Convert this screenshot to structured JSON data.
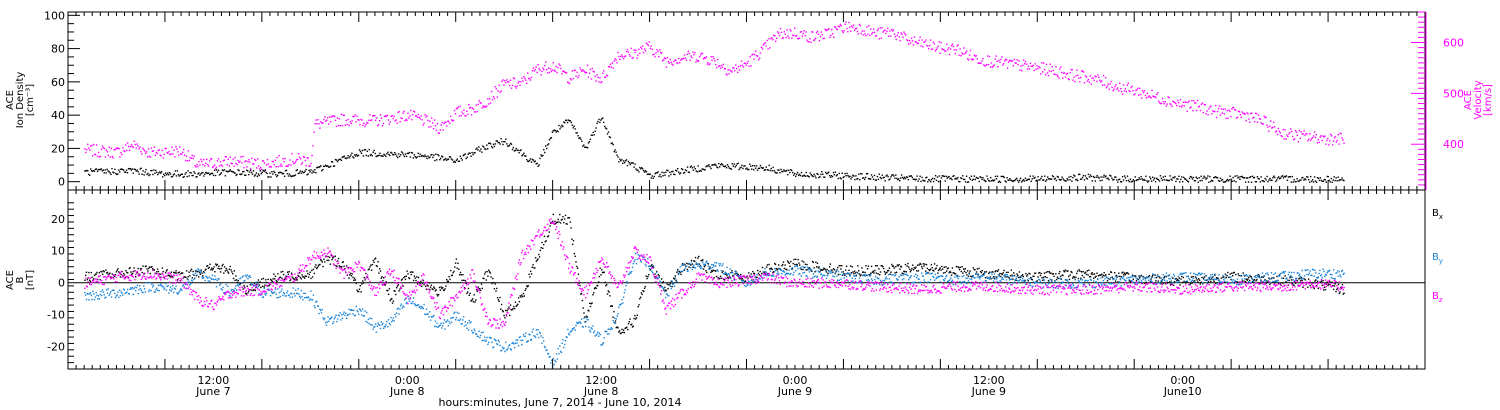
{
  "chart_data": [
    {
      "type": "scatter",
      "panel": "top",
      "left_ylabel": [
        "ACE",
        "Ion Density",
        "[cm⁻³]"
      ],
      "right_ylabel": [
        "ACE",
        "Velocity",
        "[km/s]"
      ],
      "ylim_left": [
        -5,
        102
      ],
      "ylim_right": [
        310,
        660
      ],
      "yticks_left": [
        "0",
        "20",
        "40",
        "60",
        "80",
        "100"
      ],
      "yticks_right": [
        "400",
        "500",
        "600"
      ],
      "colors": {
        "density": "#000000",
        "velocity": "#ff00ff"
      },
      "series": [
        {
          "axis": "left",
          "points": [
            [
              2,
              6
            ],
            [
              8,
              7
            ],
            [
              12,
              5
            ],
            [
              16,
              5
            ],
            [
              20,
              6
            ],
            [
              26,
              5
            ],
            [
              30,
              6
            ],
            [
              34,
              14
            ],
            [
              36,
              18
            ],
            [
              40,
              17
            ],
            [
              44,
              16
            ],
            [
              48,
              13
            ],
            [
              52,
              22
            ],
            [
              54,
              25
            ],
            [
              56,
              18
            ],
            [
              58,
              10
            ],
            [
              60,
              30
            ],
            [
              62,
              37
            ],
            [
              64,
              20
            ],
            [
              66,
              40
            ],
            [
              68,
              14
            ],
            [
              70,
              10
            ],
            [
              72,
              4
            ],
            [
              76,
              7
            ],
            [
              80,
              10
            ],
            [
              86,
              9
            ],
            [
              90,
              5
            ],
            [
              96,
              4
            ],
            [
              100,
              3
            ],
            [
              106,
              2
            ],
            [
              112,
              2
            ],
            [
              120,
              2
            ],
            [
              126,
              3
            ],
            [
              130,
              2
            ],
            [
              136,
              2
            ],
            [
              142,
              2
            ],
            [
              148,
              2
            ],
            [
              154,
              2
            ],
            [
              158,
              2
            ]
          ]
        },
        {
          "axis": "right",
          "points": [
            [
              2,
              390
            ],
            [
              6,
              385
            ],
            [
              8,
              400
            ],
            [
              10,
              385
            ],
            [
              14,
              388
            ],
            [
              16,
              360
            ],
            [
              20,
              368
            ],
            [
              24,
              362
            ],
            [
              28,
              372
            ],
            [
              30,
              368
            ],
            [
              30.5,
              440
            ],
            [
              34,
              450
            ],
            [
              38,
              447
            ],
            [
              42,
              458
            ],
            [
              44,
              448
            ],
            [
              46,
              433
            ],
            [
              48,
              463
            ],
            [
              50,
              470
            ],
            [
              52,
              490
            ],
            [
              54,
              520
            ],
            [
              56,
              520
            ],
            [
              58,
              548
            ],
            [
              60,
              556
            ],
            [
              62,
              532
            ],
            [
              64,
              547
            ],
            [
              66,
              530
            ],
            [
              68,
              576
            ],
            [
              70,
              580
            ],
            [
              72,
              593
            ],
            [
              74,
              565
            ],
            [
              76,
              572
            ],
            [
              78,
              575
            ],
            [
              80,
              565
            ],
            [
              82,
              545
            ],
            [
              84,
              560
            ],
            [
              86,
              587
            ],
            [
              88,
              618
            ],
            [
              90,
              620
            ],
            [
              92,
              612
            ],
            [
              94,
              618
            ],
            [
              96,
              632
            ],
            [
              98,
              630
            ],
            [
              100,
              618
            ],
            [
              102,
              622
            ],
            [
              104,
              605
            ],
            [
              106,
              598
            ],
            [
              108,
              590
            ],
            [
              110,
              588
            ],
            [
              112,
              572
            ],
            [
              114,
              565
            ],
            [
              116,
              560
            ],
            [
              118,
              556
            ],
            [
              120,
              551
            ],
            [
              122,
              546
            ],
            [
              124,
              538
            ],
            [
              126,
              533
            ],
            [
              128,
              525
            ],
            [
              130,
              513
            ],
            [
              132,
              507
            ],
            [
              134,
              497
            ],
            [
              136,
              488
            ],
            [
              138,
              479
            ],
            [
              140,
              475
            ],
            [
              142,
              466
            ],
            [
              144,
              462
            ],
            [
              146,
              458
            ],
            [
              148,
              445
            ],
            [
              150,
              425
            ],
            [
              152,
              418
            ],
            [
              154,
              415
            ],
            [
              156,
              412
            ],
            [
              158,
              412
            ]
          ]
        }
      ]
    },
    {
      "type": "scatter",
      "panel": "bottom",
      "left_ylabel": [
        "ACE",
        "B",
        "[nT]"
      ],
      "ylim": [
        -27,
        29
      ],
      "yticks": [
        "-20",
        "-10",
        "0",
        "10",
        "20"
      ],
      "series": [
        {
          "name": "B",
          "subscript": "x",
          "color": "#000000",
          "points": [
            [
              2,
              2
            ],
            [
              6,
              3
            ],
            [
              10,
              4
            ],
            [
              14,
              2
            ],
            [
              18,
              5
            ],
            [
              20,
              4
            ],
            [
              22,
              -2
            ],
            [
              26,
              2
            ],
            [
              30,
              3
            ],
            [
              32,
              8
            ],
            [
              34,
              6
            ],
            [
              36,
              -2
            ],
            [
              38,
              7
            ],
            [
              40,
              -5
            ],
            [
              42,
              3
            ],
            [
              44,
              0
            ],
            [
              46,
              -3
            ],
            [
              48,
              6
            ],
            [
              50,
              -6
            ],
            [
              52,
              4
            ],
            [
              54,
              -10
            ],
            [
              56,
              -5
            ],
            [
              58,
              8
            ],
            [
              60,
              20
            ],
            [
              62,
              20
            ],
            [
              64,
              -12
            ],
            [
              66,
              5
            ],
            [
              68,
              -15
            ],
            [
              70,
              -12
            ],
            [
              72,
              5
            ],
            [
              74,
              -2
            ],
            [
              76,
              5
            ],
            [
              78,
              7
            ],
            [
              80,
              3
            ],
            [
              84,
              2
            ],
            [
              86,
              4
            ],
            [
              90,
              6
            ],
            [
              96,
              4
            ],
            [
              100,
              4
            ],
            [
              106,
              5
            ],
            [
              110,
              4
            ],
            [
              114,
              3
            ],
            [
              120,
              2
            ],
            [
              126,
              3
            ],
            [
              130,
              2
            ],
            [
              136,
              1
            ],
            [
              140,
              1
            ],
            [
              144,
              2
            ],
            [
              150,
              1
            ],
            [
              154,
              0
            ],
            [
              158,
              -2
            ]
          ]
        },
        {
          "name": "B",
          "subscript": "y",
          "color": "#1a84d8",
          "points": [
            [
              2,
              -4
            ],
            [
              6,
              -3
            ],
            [
              8,
              -2
            ],
            [
              10,
              -1
            ],
            [
              14,
              -2
            ],
            [
              16,
              3
            ],
            [
              18,
              1
            ],
            [
              20,
              -3
            ],
            [
              22,
              2
            ],
            [
              24,
              -3
            ],
            [
              28,
              -3
            ],
            [
              30,
              -4
            ],
            [
              32,
              -12
            ],
            [
              34,
              -10
            ],
            [
              36,
              -8
            ],
            [
              38,
              -14
            ],
            [
              40,
              -12
            ],
            [
              42,
              -5
            ],
            [
              44,
              -8
            ],
            [
              46,
              -14
            ],
            [
              48,
              -10
            ],
            [
              50,
              -14
            ],
            [
              52,
              -18
            ],
            [
              54,
              -20
            ],
            [
              56,
              -18
            ],
            [
              58,
              -15
            ],
            [
              60,
              -25
            ],
            [
              62,
              -15
            ],
            [
              64,
              -12
            ],
            [
              66,
              -18
            ],
            [
              68,
              -10
            ],
            [
              70,
              8
            ],
            [
              72,
              6
            ],
            [
              74,
              -4
            ],
            [
              76,
              5
            ],
            [
              80,
              6
            ],
            [
              84,
              0
            ],
            [
              86,
              3
            ],
            [
              90,
              4
            ],
            [
              96,
              2
            ],
            [
              100,
              1
            ],
            [
              106,
              2
            ],
            [
              110,
              1
            ],
            [
              114,
              2
            ],
            [
              120,
              0
            ],
            [
              126,
              0
            ],
            [
              132,
              1
            ],
            [
              138,
              2
            ],
            [
              144,
              1
            ],
            [
              150,
              2
            ],
            [
              154,
              3
            ],
            [
              158,
              3
            ]
          ]
        },
        {
          "name": "B",
          "subscript": "z",
          "color": "#ff00ff",
          "points": [
            [
              2,
              0
            ],
            [
              6,
              2
            ],
            [
              10,
              3
            ],
            [
              14,
              1
            ],
            [
              16,
              -5
            ],
            [
              18,
              -7
            ],
            [
              20,
              -3
            ],
            [
              24,
              -2
            ],
            [
              28,
              2
            ],
            [
              30,
              8
            ],
            [
              32,
              10
            ],
            [
              34,
              3
            ],
            [
              36,
              6
            ],
            [
              38,
              -3
            ],
            [
              40,
              4
            ],
            [
              42,
              -5
            ],
            [
              44,
              2
            ],
            [
              46,
              -10
            ],
            [
              48,
              -4
            ],
            [
              50,
              3
            ],
            [
              52,
              -12
            ],
            [
              54,
              -13
            ],
            [
              56,
              8
            ],
            [
              58,
              15
            ],
            [
              60,
              20
            ],
            [
              62,
              5
            ],
            [
              64,
              -3
            ],
            [
              66,
              8
            ],
            [
              68,
              -2
            ],
            [
              70,
              10
            ],
            [
              72,
              7
            ],
            [
              74,
              -8
            ],
            [
              76,
              -3
            ],
            [
              78,
              2
            ],
            [
              80,
              0
            ],
            [
              84,
              1
            ],
            [
              86,
              2
            ],
            [
              90,
              0
            ],
            [
              96,
              0
            ],
            [
              100,
              -1
            ],
            [
              106,
              -2
            ],
            [
              110,
              -1
            ],
            [
              114,
              -1
            ],
            [
              120,
              -2
            ],
            [
              126,
              -2
            ],
            [
              132,
              -1
            ],
            [
              138,
              -2
            ],
            [
              144,
              -1
            ],
            [
              150,
              -1
            ],
            [
              154,
              0
            ],
            [
              158,
              -1
            ]
          ]
        }
      ]
    }
  ],
  "x_axis": {
    "range_hours": [
      0,
      168
    ],
    "ticks": [
      {
        "h": 18,
        "top": "12:00",
        "bottom": "June 7"
      },
      {
        "h": 42,
        "top": "0:00",
        "bottom": "June 8"
      },
      {
        "h": 66,
        "top": "12:00",
        "bottom": "June 8"
      },
      {
        "h": 90,
        "top": "0:00",
        "bottom": "June 9"
      },
      {
        "h": 114,
        "top": "12:00",
        "bottom": "June 9"
      },
      {
        "h": 138,
        "top": "0:00",
        "bottom": "June10"
      }
    ],
    "title": "hours:minutes, June  7, 2014 - June 10, 2014"
  }
}
